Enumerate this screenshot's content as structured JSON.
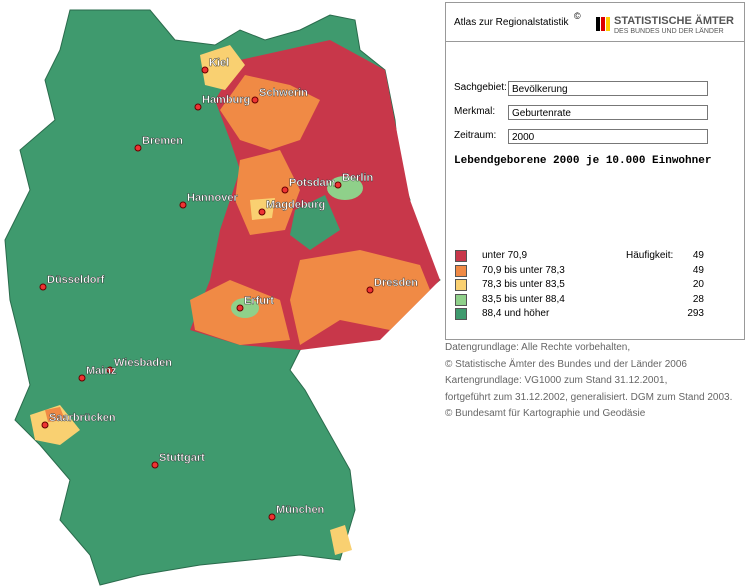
{
  "header": {
    "title": "Atlas zur Regionalstatistik",
    "copyright": "©",
    "logo_line1": "STATISTISCHE ÄMTER",
    "logo_line2": "DES BUNDES UND DER LÄNDER"
  },
  "fields": [
    {
      "label": "Sachgebiet:",
      "value": "Bevölkerung"
    },
    {
      "label": "Merkmal:",
      "value": "Geburtenrate"
    },
    {
      "label": "Zeitraum:",
      "value": "2000"
    }
  ],
  "heading": "Lebendgeborene 2000 je 10.000 Einwohner",
  "legend": {
    "count_header": "Häufigkeit:",
    "classes": [
      {
        "label": "unter 70,9",
        "color": "#c8374a",
        "count": 49
      },
      {
        "label": "70,9 bis unter 78,3",
        "color": "#f08a45",
        "count": 49
      },
      {
        "label": "78,3 bis unter 83,5",
        "color": "#f9d071",
        "count": 20
      },
      {
        "label": "83,5 bis unter 88,4",
        "color": "#8fd08a",
        "count": 28
      },
      {
        "label": "88,4 und höher",
        "color": "#3f9a6e",
        "count": 293
      }
    ]
  },
  "footer": [
    "Datengrundlage: Alle Rechte vorbehalten,",
    "© Statistische Ämter des Bundes und der Länder 2006",
    "Kartengrundlage: VG1000 zum Stand 31.12.2001,",
    "fortgeführt zum 31.12.2002, generalisiert. DGM zum Stand 2003.",
    "© Bundesamt für Kartographie und Geodäsie"
  ],
  "cities": [
    "Kiel",
    "Hamburg",
    "Schwerin",
    "Bremen",
    "Hannover",
    "Potsdam",
    "Berlin",
    "Magdeburg",
    "Düsseldorf",
    "Erfurt",
    "Dresden",
    "Wiesbaden",
    "Mainz",
    "Saarbrücken",
    "Stuttgart",
    "München"
  ]
}
